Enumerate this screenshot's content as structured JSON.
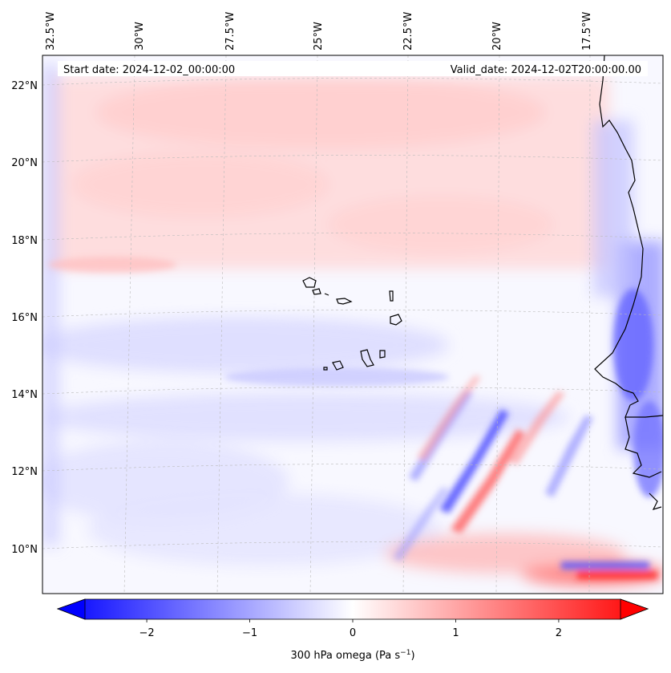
{
  "map": {
    "start_date": "Start date: 2024-12-02_00:00:00",
    "valid_date": "Valid_date: 2024-12-02T20:00:00.00",
    "lon_labels": [
      "32.5°W",
      "30°W",
      "27.5°W",
      "25°W",
      "22.5°W",
      "20°W",
      "17.5°W"
    ],
    "lat_labels": [
      "22°N",
      "20°N",
      "18°N",
      "16°N",
      "14°N",
      "12°N",
      "10°N"
    ]
  },
  "colorbar": {
    "ticks": [
      "−2",
      "−1",
      "0",
      "1",
      "2"
    ],
    "tick_values": [
      -2,
      -1,
      0,
      1,
      2
    ],
    "range": [
      -2.6,
      2.6
    ],
    "label_main": "300 hPa omega (Pa s",
    "label_sup": "−1",
    "label_close": ")",
    "colors": {
      "negative": "#0000ff",
      "zero": "#ffffff",
      "positive": "#ff0000"
    }
  }
}
